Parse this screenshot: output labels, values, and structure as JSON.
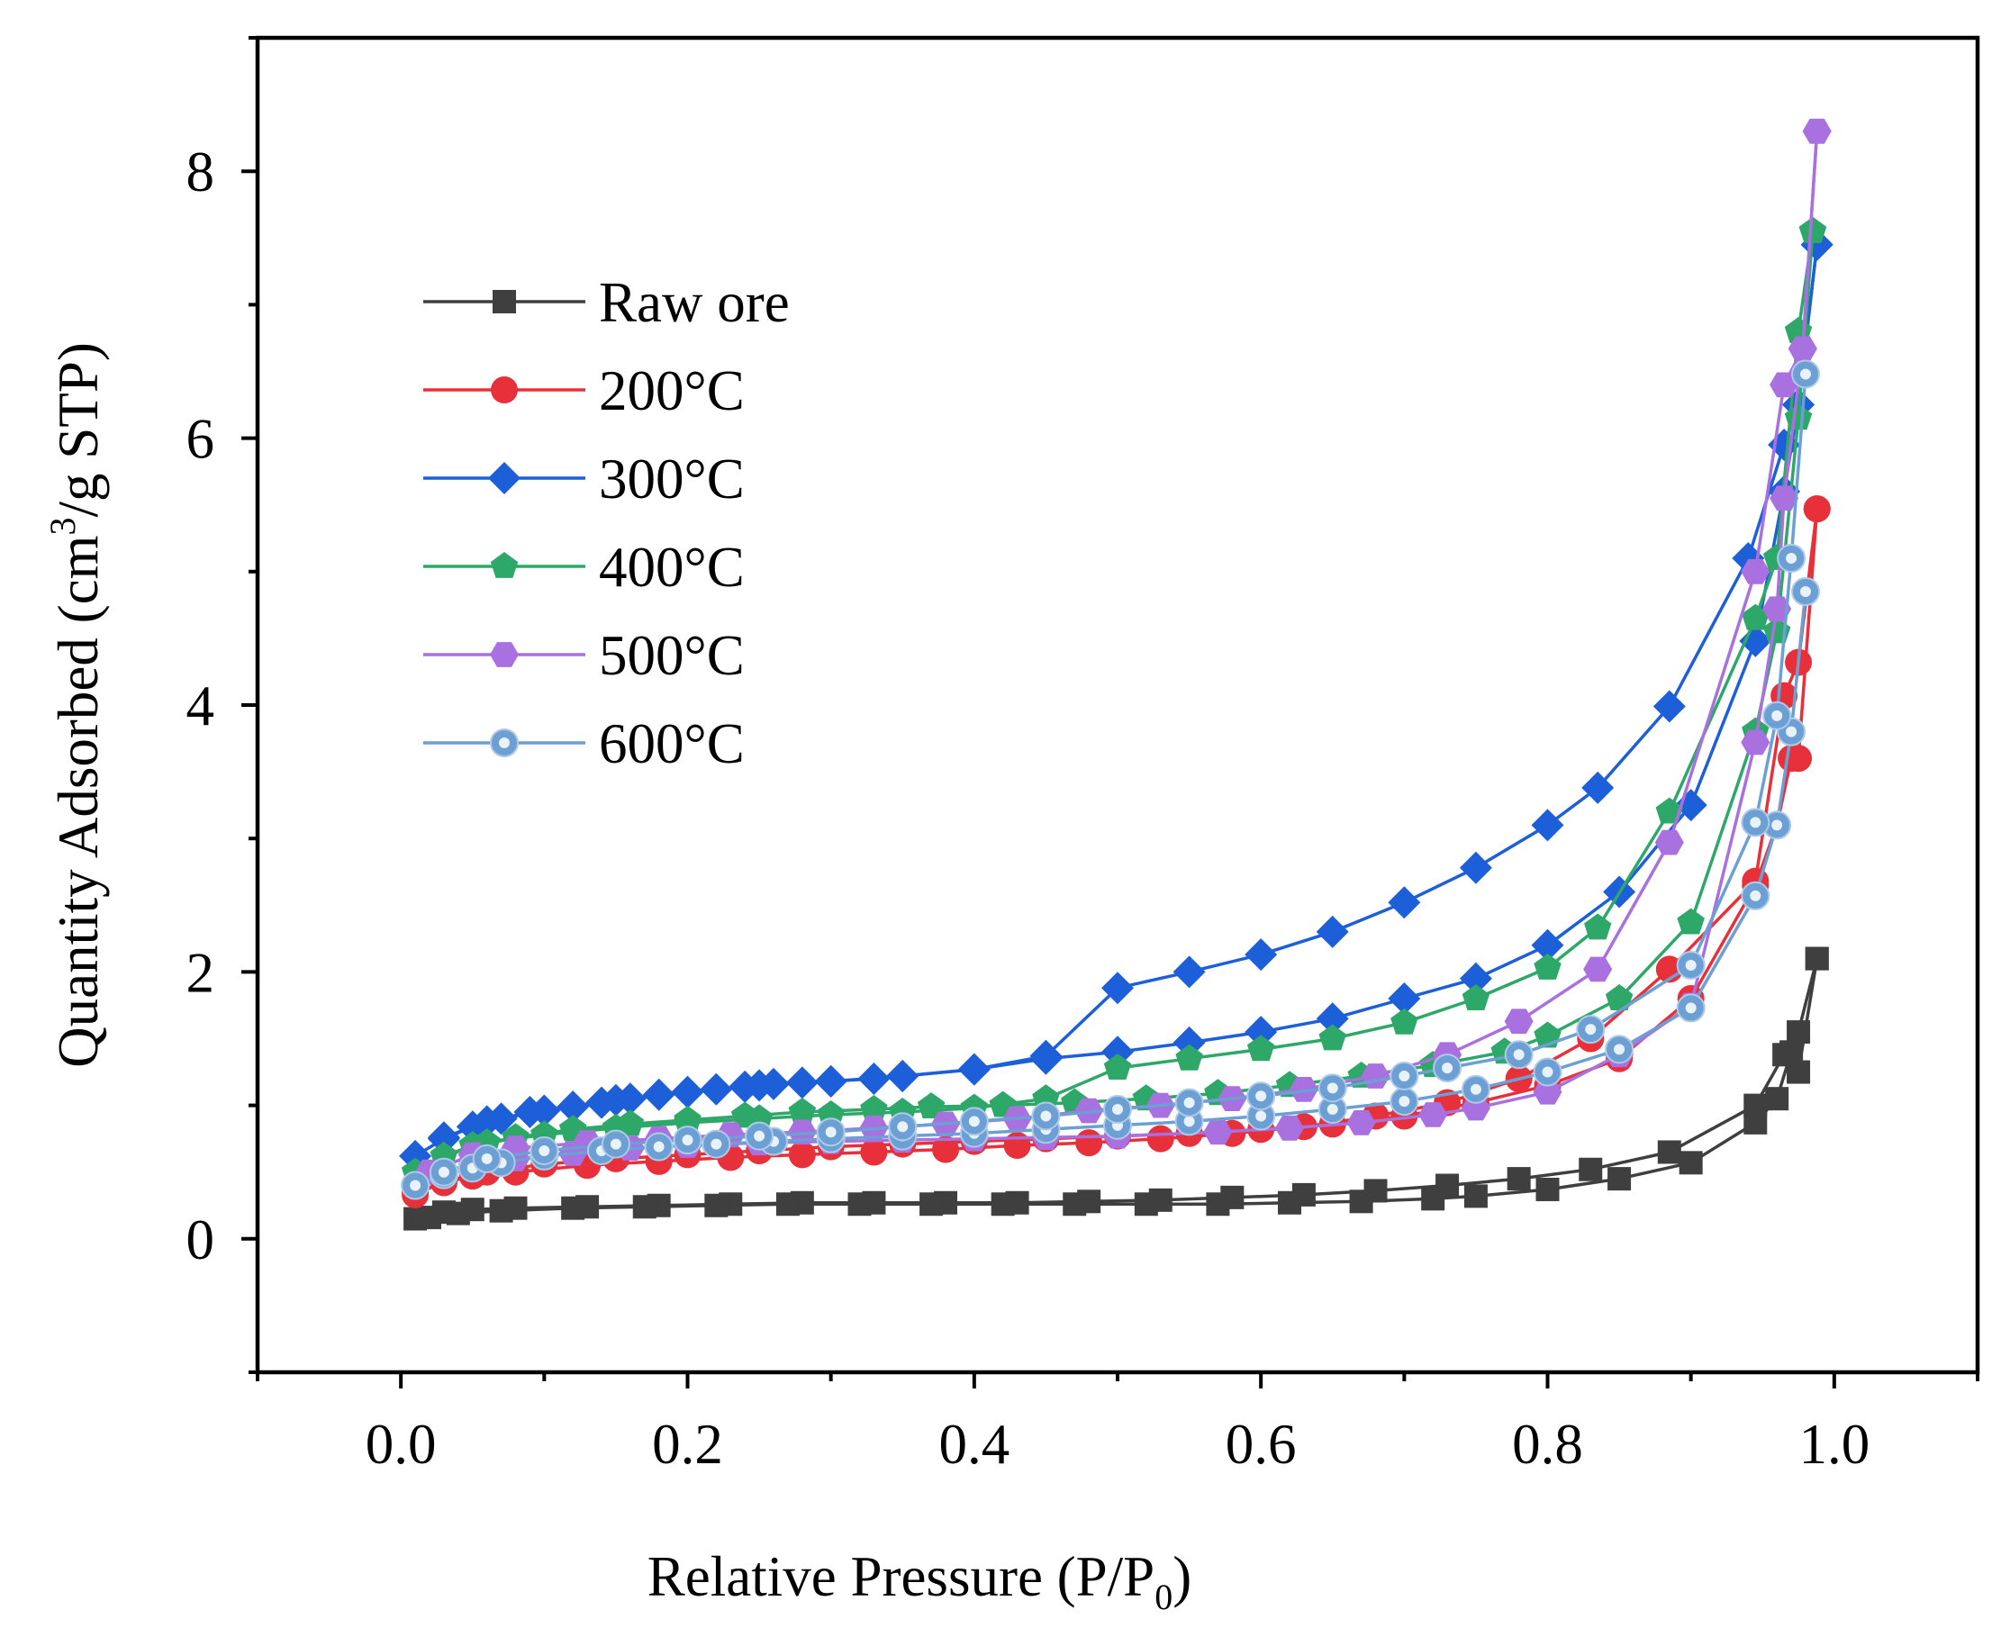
{
  "chart_data": {
    "type": "line",
    "title": "",
    "xlabel": "Relative Pressure (P/P",
    "xlabel_sub": "0",
    "xlabel_end": ")",
    "ylabel": "Quantity Adsorbed (cm",
    "ylabel_sup": "3",
    "ylabel_end": "/g STP)",
    "xlim": [
      -0.1,
      1.1
    ],
    "ylim": [
      -1,
      9
    ],
    "x_ticks": [
      0.0,
      0.2,
      0.4,
      0.6,
      0.8,
      1.0
    ],
    "x_tick_labels": [
      "0.0",
      "0.2",
      "0.4",
      "0.6",
      "0.8",
      "1.0"
    ],
    "y_ticks": [
      0,
      2,
      4,
      6,
      8
    ],
    "y_tick_labels": [
      "0",
      "2",
      "4",
      "6",
      "8"
    ],
    "grid": false,
    "legend_position": "top-left",
    "series": [
      {
        "name": "Raw ore",
        "color": "#3f3f3f",
        "marker": "square",
        "adsorption_x": [
          0.01,
          0.03,
          0.05,
          0.08,
          0.13,
          0.18,
          0.23,
          0.28,
          0.33,
          0.38,
          0.43,
          0.48,
          0.53,
          0.58,
          0.63,
          0.68,
          0.73,
          0.78,
          0.83,
          0.885,
          0.945,
          0.965,
          0.975,
          0.988
        ],
        "adsorption_y": [
          0.15,
          0.2,
          0.22,
          0.23,
          0.24,
          0.25,
          0.26,
          0.27,
          0.27,
          0.27,
          0.27,
          0.28,
          0.29,
          0.31,
          0.33,
          0.36,
          0.4,
          0.45,
          0.52,
          0.65,
          1.0,
          1.38,
          1.55,
          2.1
        ],
        "desorption_x": [
          0.988,
          0.975,
          0.97,
          0.96,
          0.945,
          0.9,
          0.85,
          0.8,
          0.75,
          0.72,
          0.67,
          0.62,
          0.57,
          0.52,
          0.47,
          0.42,
          0.37,
          0.32,
          0.27,
          0.22,
          0.17,
          0.12,
          0.07,
          0.04,
          0.02
        ],
        "desorption_y": [
          2.1,
          1.25,
          1.4,
          1.05,
          0.87,
          0.57,
          0.45,
          0.37,
          0.32,
          0.3,
          0.28,
          0.27,
          0.26,
          0.26,
          0.26,
          0.26,
          0.26,
          0.26,
          0.26,
          0.25,
          0.24,
          0.23,
          0.21,
          0.19,
          0.16
        ]
      },
      {
        "name": "200°C",
        "color": "#e8303a",
        "marker": "circle",
        "adsorption_x": [
          0.01,
          0.03,
          0.05,
          0.08,
          0.13,
          0.18,
          0.23,
          0.28,
          0.33,
          0.38,
          0.43,
          0.48,
          0.53,
          0.58,
          0.63,
          0.68,
          0.73,
          0.78,
          0.83,
          0.885,
          0.945,
          0.965,
          0.975,
          0.988
        ],
        "adsorption_y": [
          0.35,
          0.42,
          0.47,
          0.5,
          0.55,
          0.58,
          0.61,
          0.63,
          0.65,
          0.67,
          0.7,
          0.72,
          0.75,
          0.79,
          0.84,
          0.92,
          1.02,
          1.2,
          1.5,
          2.02,
          2.68,
          4.07,
          4.32,
          5.47
        ],
        "desorption_x": [
          0.988,
          0.975,
          0.97,
          0.96,
          0.945,
          0.9,
          0.85,
          0.8,
          0.75,
          0.7,
          0.65,
          0.6,
          0.55,
          0.5,
          0.45,
          0.4,
          0.35,
          0.3,
          0.25,
          0.2,
          0.15,
          0.1,
          0.06,
          0.03,
          0.01
        ],
        "desorption_y": [
          5.47,
          3.6,
          3.6,
          3.1,
          2.65,
          1.8,
          1.35,
          1.15,
          1.02,
          0.92,
          0.86,
          0.82,
          0.79,
          0.77,
          0.75,
          0.73,
          0.71,
          0.69,
          0.66,
          0.63,
          0.6,
          0.56,
          0.5,
          0.43,
          0.33
        ]
      },
      {
        "name": "300°C",
        "color": "#1c5fd8",
        "marker": "diamond",
        "adsorption_x": [
          0.01,
          0.03,
          0.05,
          0.07,
          0.09,
          0.12,
          0.14,
          0.16,
          0.18,
          0.2,
          0.22,
          0.24,
          0.26,
          0.28,
          0.3,
          0.33,
          0.35,
          0.4,
          0.45,
          0.5,
          0.55,
          0.6,
          0.65,
          0.7,
          0.75,
          0.8,
          0.835,
          0.885,
          0.94,
          0.965,
          0.975,
          0.988
        ],
        "adsorption_y": [
          0.62,
          0.75,
          0.84,
          0.9,
          0.95,
          0.99,
          1.02,
          1.05,
          1.08,
          1.1,
          1.12,
          1.14,
          1.16,
          1.17,
          1.18,
          1.2,
          1.22,
          1.27,
          1.37,
          1.88,
          2.0,
          2.13,
          2.3,
          2.52,
          2.78,
          3.1,
          3.38,
          3.99,
          5.1,
          5.95,
          6.25,
          7.45
        ],
        "desorption_x": [
          0.988,
          0.975,
          0.965,
          0.945,
          0.9,
          0.85,
          0.8,
          0.75,
          0.7,
          0.65,
          0.6,
          0.55,
          0.5,
          0.45,
          0.4,
          0.35,
          0.3,
          0.25,
          0.2,
          0.15,
          0.1,
          0.06,
          0.03
        ],
        "desorption_y": [
          7.45,
          6.25,
          5.6,
          4.48,
          3.25,
          2.6,
          2.2,
          1.95,
          1.8,
          1.65,
          1.55,
          1.47,
          1.4,
          1.35,
          1.27,
          1.22,
          1.18,
          1.15,
          1.1,
          1.04,
          0.96,
          0.88,
          0.76
        ]
      },
      {
        "name": "400°C",
        "color": "#2ea868",
        "marker": "pentagon",
        "adsorption_x": [
          0.01,
          0.03,
          0.05,
          0.08,
          0.12,
          0.16,
          0.2,
          0.24,
          0.28,
          0.33,
          0.37,
          0.42,
          0.47,
          0.52,
          0.57,
          0.62,
          0.67,
          0.72,
          0.77,
          0.8,
          0.85,
          0.9,
          0.945,
          0.96,
          0.975,
          0.985
        ],
        "adsorption_y": [
          0.5,
          0.62,
          0.7,
          0.76,
          0.82,
          0.86,
          0.89,
          0.92,
          0.95,
          0.97,
          0.99,
          1.0,
          1.02,
          1.05,
          1.09,
          1.15,
          1.22,
          1.3,
          1.4,
          1.52,
          1.8,
          2.37,
          3.8,
          4.55,
          6.15,
          7.55
        ],
        "desorption_x": [
          0.985,
          0.975,
          0.96,
          0.945,
          0.885,
          0.835,
          0.8,
          0.75,
          0.7,
          0.65,
          0.6,
          0.55,
          0.5,
          0.45,
          0.4,
          0.35,
          0.3,
          0.25,
          0.2,
          0.15,
          0.1,
          0.06,
          0.03
        ],
        "desorption_y": [
          7.55,
          6.8,
          5.1,
          4.65,
          3.2,
          2.33,
          2.03,
          1.8,
          1.62,
          1.5,
          1.42,
          1.35,
          1.28,
          1.05,
          0.98,
          0.95,
          0.93,
          0.9,
          0.87,
          0.83,
          0.78,
          0.72,
          0.62
        ]
      },
      {
        "name": "500°C",
        "color": "#a970e0",
        "marker": "hexagon",
        "adsorption_x": [
          0.01,
          0.03,
          0.05,
          0.08,
          0.12,
          0.16,
          0.2,
          0.25,
          0.3,
          0.35,
          0.4,
          0.45,
          0.5,
          0.57,
          0.62,
          0.67,
          0.72,
          0.75,
          0.8,
          0.85,
          0.9,
          0.945,
          0.96,
          0.965,
          0.978,
          0.988
        ],
        "adsorption_y": [
          0.4,
          0.5,
          0.56,
          0.6,
          0.64,
          0.68,
          0.7,
          0.72,
          0.73,
          0.74,
          0.75,
          0.76,
          0.77,
          0.8,
          0.83,
          0.87,
          0.93,
          0.98,
          1.1,
          1.38,
          1.75,
          3.72,
          4.72,
          5.55,
          6.67,
          8.3
        ],
        "desorption_x": [
          0.988,
          0.978,
          0.965,
          0.945,
          0.885,
          0.835,
          0.78,
          0.73,
          0.68,
          0.63,
          0.58,
          0.53,
          0.48,
          0.43,
          0.38,
          0.33,
          0.28,
          0.23,
          0.18,
          0.13,
          0.08,
          0.05,
          0.02
        ],
        "desorption_y": [
          8.3,
          6.67,
          6.4,
          5.0,
          2.97,
          2.02,
          1.63,
          1.38,
          1.22,
          1.12,
          1.05,
          1.0,
          0.96,
          0.9,
          0.86,
          0.83,
          0.8,
          0.78,
          0.75,
          0.72,
          0.68,
          0.63,
          0.5
        ]
      },
      {
        "name": "600°C",
        "color": "#6c9fd4",
        "marker": "circle-pattern",
        "adsorption_x": [
          0.01,
          0.03,
          0.05,
          0.07,
          0.1,
          0.14,
          0.18,
          0.22,
          0.26,
          0.3,
          0.35,
          0.4,
          0.45,
          0.5,
          0.55,
          0.6,
          0.65,
          0.7,
          0.75,
          0.8,
          0.85,
          0.9,
          0.945,
          0.96,
          0.97,
          0.98
        ],
        "adsorption_y": [
          0.4,
          0.48,
          0.53,
          0.57,
          0.62,
          0.66,
          0.69,
          0.71,
          0.73,
          0.75,
          0.77,
          0.79,
          0.82,
          0.85,
          0.88,
          0.92,
          0.97,
          1.03,
          1.12,
          1.25,
          1.42,
          1.73,
          2.57,
          3.1,
          3.8,
          4.85
        ],
        "desorption_x": [
          0.98,
          0.97,
          0.96,
          0.945,
          0.9,
          0.83,
          0.78,
          0.73,
          0.7,
          0.65,
          0.6,
          0.55,
          0.5,
          0.45,
          0.4,
          0.35,
          0.3,
          0.25,
          0.2,
          0.15,
          0.1,
          0.06,
          0.03
        ],
        "desorption_y": [
          6.48,
          5.1,
          3.92,
          3.12,
          2.05,
          1.57,
          1.38,
          1.28,
          1.22,
          1.13,
          1.07,
          1.02,
          0.97,
          0.92,
          0.88,
          0.84,
          0.8,
          0.77,
          0.74,
          0.71,
          0.66,
          0.6,
          0.5
        ]
      }
    ]
  }
}
